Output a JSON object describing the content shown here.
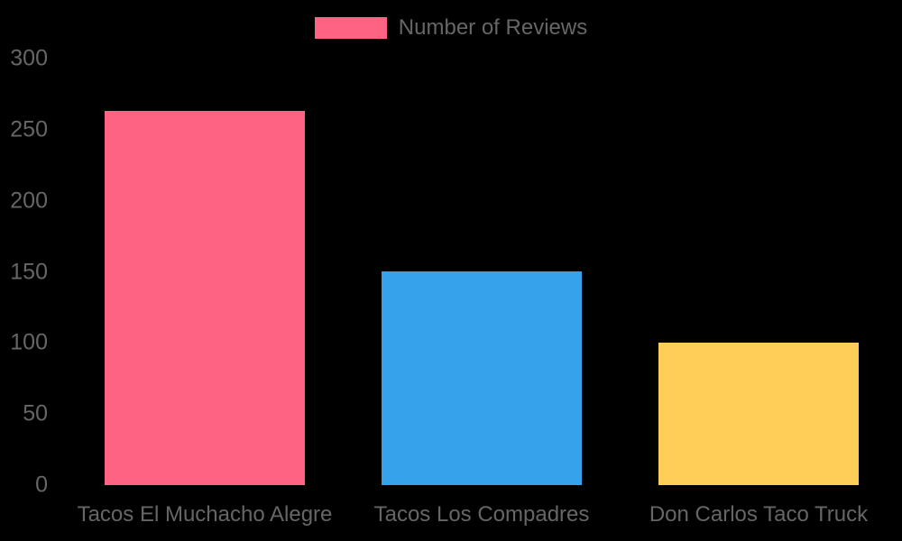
{
  "colors": {
    "background": "#000000",
    "text": "#666666"
  },
  "chart_data": {
    "type": "bar",
    "title": "",
    "categories": [
      "Tacos El Muchacho Alegre",
      "Tacos Los Compadres",
      "Don Carlos Taco Truck"
    ],
    "series": [
      {
        "name": "Number of Reviews",
        "values": [
          263,
          150,
          100
        ],
        "colors": [
          "#FF6384",
          "#36A2EB",
          "#FFCE56"
        ]
      }
    ],
    "xlabel": "",
    "ylabel": "",
    "ylim": [
      0,
      300
    ],
    "yticks": [
      0,
      50,
      100,
      150,
      200,
      250,
      300
    ],
    "grid": false,
    "legend_position": "top",
    "legend_swatch_color": "#FF6384"
  }
}
